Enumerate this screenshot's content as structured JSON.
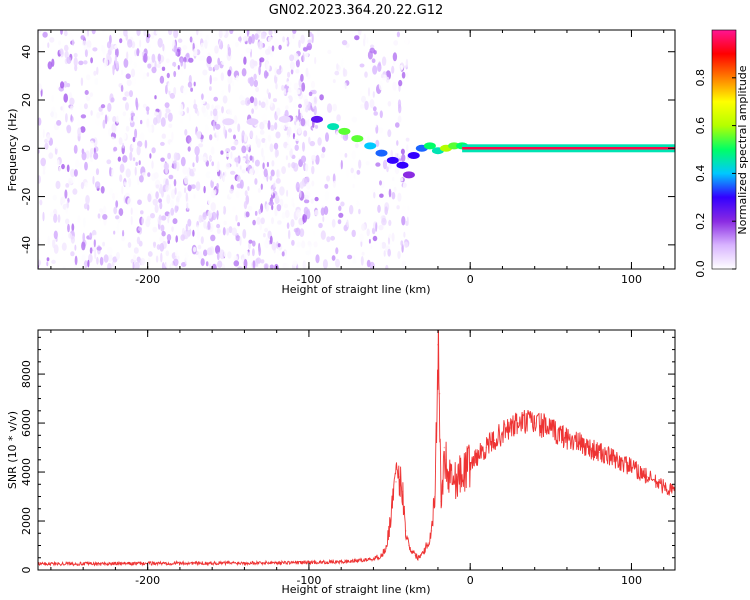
{
  "title": "GN02.2023.364.20.22.G12",
  "chart_data": [
    {
      "type": "heatmap",
      "xlabel": "Height of straight line (km)",
      "ylabel": "Frequency (Hz)",
      "xlim": [
        -268,
        127
      ],
      "ylim": [
        -50,
        49
      ],
      "xticks": [
        -200,
        -100,
        0,
        100
      ],
      "yticks": [
        -40,
        -20,
        0,
        20,
        40
      ],
      "colorbar": {
        "label": "Normalized spectral amplitude",
        "range": [
          0,
          1
        ],
        "ticks": [
          0.0,
          0.2,
          0.4,
          0.6,
          0.8
        ],
        "colormap": [
          "#ffffff",
          "#d8b4ff",
          "#8a2be2",
          "#3300ff",
          "#00c8ff",
          "#00ff66",
          "#b4ff00",
          "#ffff00",
          "#ff7f00",
          "#ff0000",
          "#ff1493"
        ]
      },
      "noise_region_x": [
        -268,
        -38
      ],
      "ridge": [
        {
          "x": -150,
          "y": 11,
          "amp": 0.05
        },
        {
          "x": -135,
          "y": 11,
          "amp": 0.06
        },
        {
          "x": -115,
          "y": 12,
          "amp": 0.05
        },
        {
          "x": -95,
          "y": 12,
          "amp": 0.25
        },
        {
          "x": -85,
          "y": 9,
          "amp": 0.45
        },
        {
          "x": -78,
          "y": 7,
          "amp": 0.55
        },
        {
          "x": -70,
          "y": 4,
          "amp": 0.55
        },
        {
          "x": -62,
          "y": 1,
          "amp": 0.4
        },
        {
          "x": -55,
          "y": -2,
          "amp": 0.35
        },
        {
          "x": -48,
          "y": -5,
          "amp": 0.3
        },
        {
          "x": -42,
          "y": -7,
          "amp": 0.3
        },
        {
          "x": -38,
          "y": -11,
          "amp": 0.2
        },
        {
          "x": -35,
          "y": -3,
          "amp": 0.3
        },
        {
          "x": -30,
          "y": 0,
          "amp": 0.35
        },
        {
          "x": -25,
          "y": 1,
          "amp": 0.5
        },
        {
          "x": -20,
          "y": -1,
          "amp": 0.45
        },
        {
          "x": -15,
          "y": 0,
          "amp": 0.6
        },
        {
          "x": -10,
          "y": 1,
          "amp": 0.55
        },
        {
          "x": -5,
          "y": 1,
          "amp": 0.5
        }
      ],
      "carrier": {
        "x_start": -5,
        "x_end": 127,
        "y": 0,
        "amp": 0.95
      }
    },
    {
      "type": "line",
      "xlabel": "Height of straight line (km)",
      "ylabel": "SNR (10 * v/v)",
      "xlim": [
        -268,
        127
      ],
      "ylim": [
        0,
        9800
      ],
      "xticks": [
        -200,
        -100,
        0,
        100
      ],
      "yticks": [
        0,
        2000,
        4000,
        6000,
        8000
      ],
      "color": "#ee3333",
      "series": [
        {
          "x": [
            -268,
            -250,
            -230,
            -200,
            -180,
            -160,
            -140,
            -120,
            -100,
            -80,
            -70,
            -60,
            -55,
            -52,
            -50,
            -48,
            -46,
            -44,
            -42,
            -41,
            -40,
            -38,
            -36,
            -34,
            -32,
            -30,
            -28,
            -26,
            -24,
            -22,
            -21,
            -20,
            -19,
            -18,
            -17,
            -16,
            -15,
            -14,
            -12,
            -10,
            -8,
            -5,
            -2,
            0,
            5,
            10,
            15,
            20,
            25,
            30,
            35,
            40,
            45,
            50,
            60,
            70,
            80,
            90,
            100,
            110,
            120,
            127
          ],
          "y": [
            250,
            260,
            250,
            270,
            280,
            280,
            290,
            300,
            310,
            330,
            380,
            450,
            600,
            900,
            1800,
            3000,
            3600,
            3800,
            3200,
            2600,
            1600,
            1000,
            800,
            600,
            500,
            700,
            900,
            1100,
            1600,
            3000,
            5500,
            9200,
            7200,
            2800,
            3400,
            5000,
            4500,
            3900,
            4100,
            3600,
            3800,
            3900,
            4200,
            4300,
            4700,
            5000,
            5300,
            5600,
            5800,
            6000,
            6050,
            6000,
            5900,
            5700,
            5400,
            5100,
            4800,
            4500,
            4200,
            3800,
            3400,
            3200
          ]
        }
      ]
    }
  ]
}
